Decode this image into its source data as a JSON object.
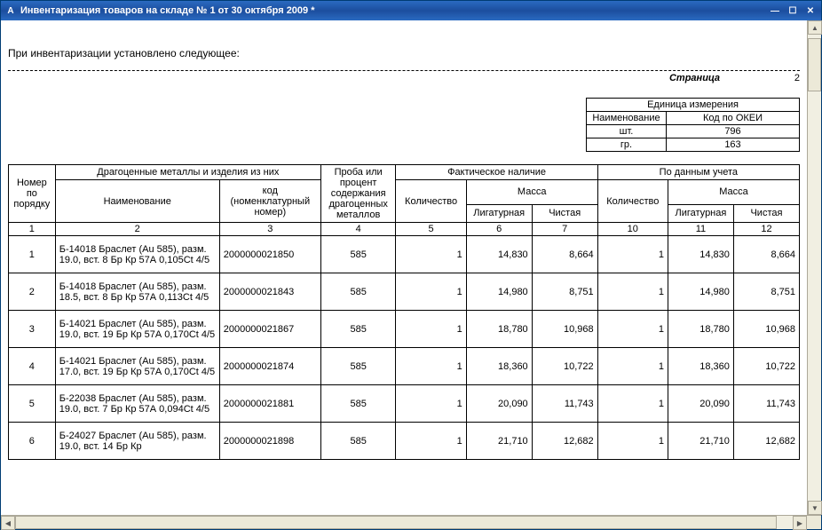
{
  "window": {
    "title": "Инвентаризация товаров на складе № 1 от 30 октября 2009 *",
    "app_icon_glyph": "A"
  },
  "intro_text": "При инвентаризации установлено следующее:",
  "page_label": "Страница",
  "page_number": "2",
  "unit_block": {
    "header": "Единица измерения",
    "name_header": "Наименование",
    "code_header": "Код по ОКЕИ",
    "rows": [
      {
        "name": "шт.",
        "code": "796"
      },
      {
        "name": "гр.",
        "code": "163"
      }
    ]
  },
  "main_headers": {
    "num": "Номер по порядку",
    "metals_group": "Драгоценные металлы и изделия из них",
    "name": "Наименование",
    "code": "код (номенклатурный номер)",
    "proba": "Проба или процент содержания драгоценных металлов",
    "actual_group": "Фактическое наличие",
    "books_group": "По данным учета",
    "qty": "Количество",
    "mass": "Масса",
    "mass_lig": "Лигатурная",
    "mass_clean": "Чистая"
  },
  "col_numbers": [
    "1",
    "2",
    "3",
    "4",
    "5",
    "6",
    "7",
    "10",
    "11",
    "12"
  ],
  "rows": [
    {
      "n": "1",
      "name": "Б-14018 Браслет (Au 585), разм. 19.0, вст. 8 Бр Кр 57А 0,105Ct 4/5",
      "code": "2000000021850",
      "proba": "585",
      "aq": "1",
      "alig": "14,830",
      "acl": "8,664",
      "bq": "1",
      "blig": "14,830",
      "bcl": "8,664"
    },
    {
      "n": "2",
      "name": "Б-14018 Браслет (Au 585), разм. 18.5, вст. 8 Бр Кр 57А 0,113Ct 4/5",
      "code": "2000000021843",
      "proba": "585",
      "aq": "1",
      "alig": "14,980",
      "acl": "8,751",
      "bq": "1",
      "blig": "14,980",
      "bcl": "8,751"
    },
    {
      "n": "3",
      "name": "Б-14021 Браслет (Au 585), разм. 19.0, вст. 19 Бр Кр 57А 0,170Ct 4/5",
      "code": "2000000021867",
      "proba": "585",
      "aq": "1",
      "alig": "18,780",
      "acl": "10,968",
      "bq": "1",
      "blig": "18,780",
      "bcl": "10,968"
    },
    {
      "n": "4",
      "name": "Б-14021 Браслет (Au 585), разм. 17.0, вст. 19 Бр Кр 57А 0,170Ct 4/5",
      "code": "2000000021874",
      "proba": "585",
      "aq": "1",
      "alig": "18,360",
      "acl": "10,722",
      "bq": "1",
      "blig": "18,360",
      "bcl": "10,722"
    },
    {
      "n": "5",
      "name": "Б-22038 Браслет (Au 585), разм. 19.0, вст. 7 Бр Кр 57А 0,094Ct 4/5",
      "code": "2000000021881",
      "proba": "585",
      "aq": "1",
      "alig": "20,090",
      "acl": "11,743",
      "bq": "1",
      "blig": "20,090",
      "bcl": "11,743"
    },
    {
      "n": "6",
      "name": "Б-24027 Браслет (Au 585), разм. 19.0, вст. 14 Бр Кр",
      "code": "2000000021898",
      "proba": "585",
      "aq": "1",
      "alig": "21,710",
      "acl": "12,682",
      "bq": "1",
      "blig": "21,710",
      "bcl": "12,682"
    }
  ]
}
